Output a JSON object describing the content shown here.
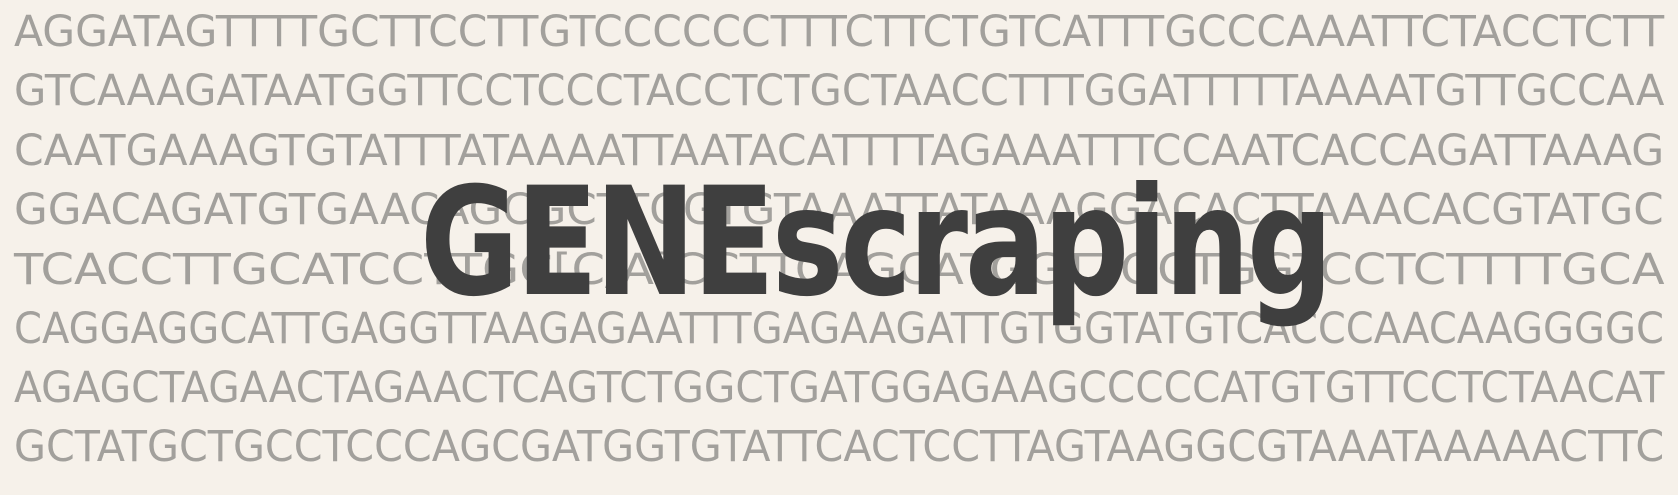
{
  "logo": {
    "text": "GENEscraping",
    "color": "#3f3f3f"
  },
  "background_color": "#f6f1ea",
  "sequence_color": "#a2a09c",
  "sequence_lines": [
    "AGGATAGTTTTGCTTCCTTGTCCCCCCTTTCTTCTGTCATTTGCCCAAATTCTACCTCTT",
    "GTCAAAGATAATGGTTCCTCCCTACCTCTGCTAACCTTTGGATTTTTAAAATGTTGCCAA",
    "CAATGAAAGTGTATTTATAAAATTAATACATTTTAGAAATTTCCAATCACCAGATTAAAG",
    "GGACAGATGTGAACAGCGCTTGGTGTAAATTATAAAGGACACTTAAACACGTATGC",
    "TCACCTTGCATCCTTGC[C/A]CCTTCAGCATGGTTGCTGGTCCTCTTTTGCA",
    "CAGGAGGCATTGAGGTTAAGAGAATTTGAGAAGATTGTGGTATGTCACCCAACAAGGGGC",
    "AGAGCTAGAACTAGAACTCAGTCTGGCTGATGGAGAAGCCCCCATGTGTTCCTCTAACAT",
    "GCTATGCTGCCTCCCAGCGATGGTGTATTCACTCCTTAGTAAGGCGTAAATAAAAACTTC"
  ]
}
